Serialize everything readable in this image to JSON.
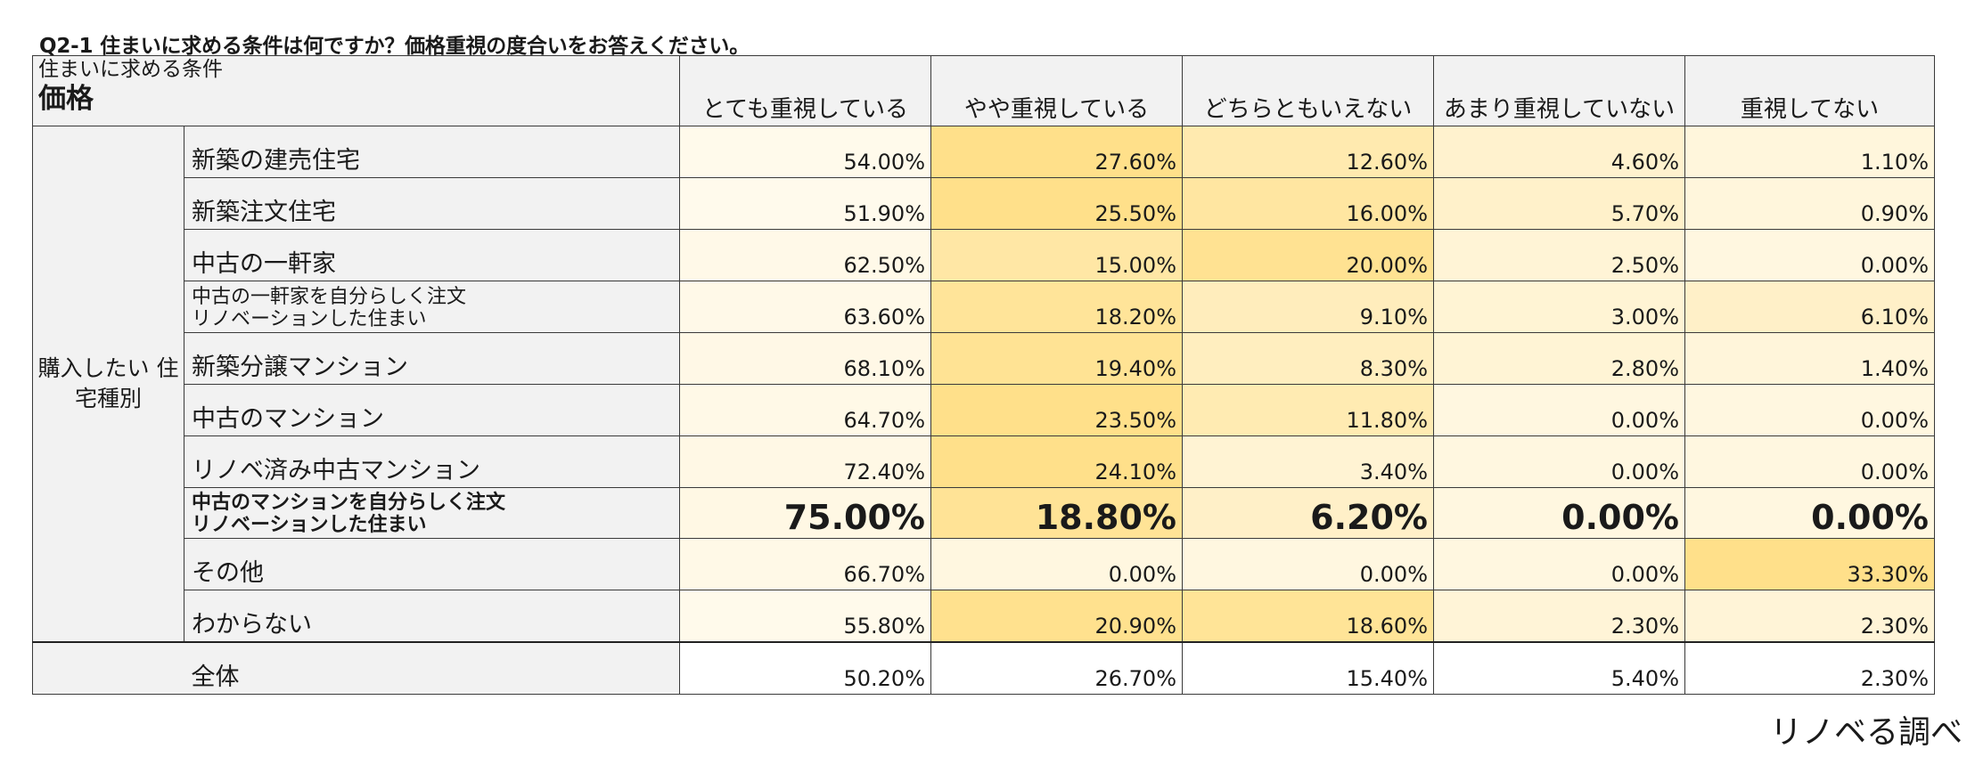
{
  "question": "Q2-1 住まいに求める条件は何ですか？価格重視の度合いをお答えください。",
  "corner": {
    "sub": "住まいに求める条件",
    "main": "価格"
  },
  "group_label": "購入したい\n住宅種別",
  "total_label": "全体",
  "credit": "リノベる調べ",
  "colors": {
    "heat_low": "#ffffff",
    "heat_high": "#ffe08a",
    "label_bg": "#f2f2f2"
  },
  "chart_data": {
    "type": "table",
    "columns": [
      "とても重視している",
      "やや重視している",
      "どちらともいえない",
      "あまり重視していない",
      "重視してない"
    ],
    "rows": [
      {
        "label": "新築の建売住宅",
        "values": [
          "54.00%",
          "27.60%",
          "12.60%",
          "4.60%",
          "1.10%"
        ]
      },
      {
        "label": "新築注文住宅",
        "values": [
          "51.90%",
          "25.50%",
          "16.00%",
          "5.70%",
          "0.90%"
        ]
      },
      {
        "label": "中古の一軒家",
        "values": [
          "62.50%",
          "15.00%",
          "20.00%",
          "2.50%",
          "0.00%"
        ]
      },
      {
        "label": "中古の一軒家を自分らしく注文\nリノベーションした住まい",
        "values": [
          "63.60%",
          "18.20%",
          "9.10%",
          "3.00%",
          "6.10%"
        ]
      },
      {
        "label": "新築分譲マンション",
        "values": [
          "68.10%",
          "19.40%",
          "8.30%",
          "2.80%",
          "1.40%"
        ]
      },
      {
        "label": "中古のマンション",
        "values": [
          "64.70%",
          "23.50%",
          "11.80%",
          "0.00%",
          "0.00%"
        ]
      },
      {
        "label": "リノベ済み中古マンション",
        "values": [
          "72.40%",
          "24.10%",
          "3.40%",
          "0.00%",
          "0.00%"
        ]
      },
      {
        "label": "中古のマンションを自分らしく注文\nリノベーションした住まい",
        "values": [
          "75.00%",
          "18.80%",
          "6.20%",
          "0.00%",
          "0.00%"
        ],
        "highlight": true
      },
      {
        "label": "その他",
        "values": [
          "66.70%",
          "0.00%",
          "0.00%",
          "0.00%",
          "33.30%"
        ]
      },
      {
        "label": "わからない",
        "values": [
          "55.80%",
          "20.90%",
          "18.60%",
          "2.30%",
          "2.30%"
        ]
      }
    ],
    "total": {
      "label": "全体",
      "values": [
        "50.20%",
        "26.70%",
        "15.40%",
        "5.40%",
        "2.30%"
      ]
    }
  }
}
